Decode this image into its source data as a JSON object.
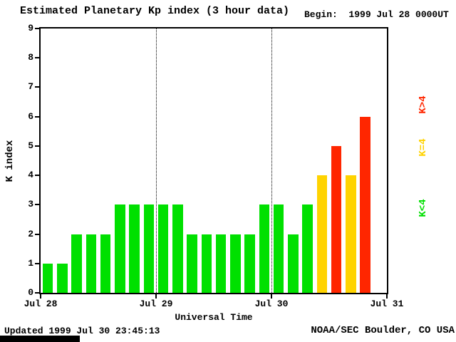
{
  "chart_data": {
    "type": "bar",
    "title": "Estimated Planetary Kp index (3 hour data)",
    "begin_label": "Begin:  1999 Jul 28 0000UT",
    "xlabel": "Universal Time",
    "ylabel": "K index",
    "ylim": [
      0,
      9
    ],
    "y_tick_labels": [
      0,
      1,
      2,
      3,
      4,
      5,
      6,
      7,
      8,
      9
    ],
    "x_tick_labels": [
      "Jul 28",
      "Jul 29",
      "Jul 30",
      "Jul 31"
    ],
    "hours_per_bar": 3,
    "bars_per_day": 8,
    "slots_total": 24,
    "days": [
      {
        "date": "Jul 28",
        "values": [
          1,
          1,
          2,
          2,
          2,
          3,
          3,
          3
        ]
      },
      {
        "date": "Jul 29",
        "values": [
          3,
          3,
          2,
          2,
          2,
          2,
          2,
          3
        ]
      },
      {
        "date": "Jul 30",
        "values": [
          3,
          2,
          3,
          4,
          5,
          4,
          6
        ]
      }
    ],
    "colors": {
      "below4": "#00E000",
      "equal4": "#FFD300",
      "above4": "#FF2600"
    },
    "legend": [
      {
        "label": "K>4",
        "color": "#FF2600"
      },
      {
        "label": "K=4",
        "color": "#FFD300"
      },
      {
        "label": "K<4",
        "color": "#00E000"
      }
    ],
    "legend_position": "right",
    "grid": "vertical dotted lines at day boundaries"
  },
  "footer": {
    "updated": "Updated 1999 Jul 30 23:45:13",
    "credit": "NOAA/SEC Boulder, CO USA"
  }
}
